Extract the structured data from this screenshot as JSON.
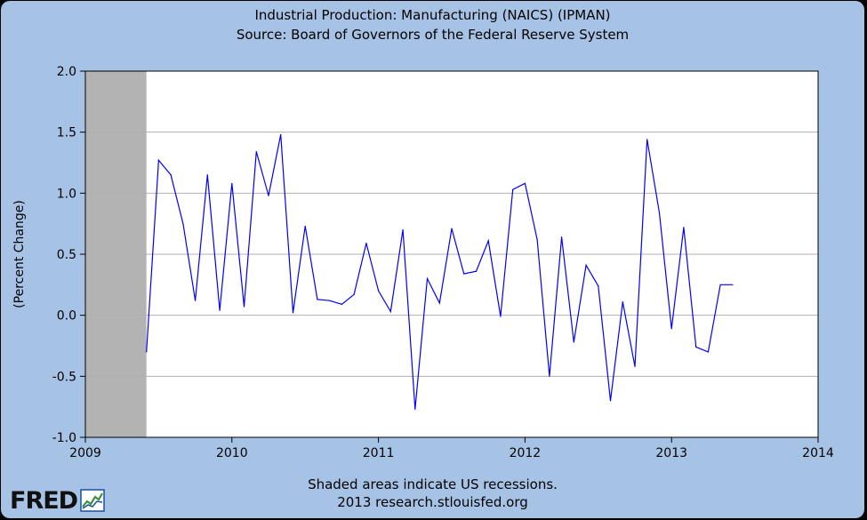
{
  "title_line1": "Industrial Production: Manufacturing (NAICS) (IPMAN)",
  "title_line2": "Source: Board of Governors of the Federal Reserve System",
  "footer_line1": "Shaded areas indicate US recessions.",
  "footer_line2": "2013 research.stlouisfed.org",
  "logo_text": "FRED",
  "colors": {
    "background": "#a6c3e6",
    "plot_background": "#ffffff",
    "line": "#0000ff",
    "recession": "#b3b3b3",
    "grid": "#b0b0b0"
  },
  "chart_data": {
    "type": "line",
    "title": "Industrial Production: Manufacturing (NAICS) (IPMAN)",
    "subtitle": "Source: Board of Governors of the Federal Reserve System",
    "xlabel": "",
    "ylabel": "(Percent Change)",
    "xlim": [
      2009,
      2014
    ],
    "ylim": [
      -1.0,
      2.0
    ],
    "xticks": [
      "2009",
      "2010",
      "2011",
      "2012",
      "2013",
      "2014"
    ],
    "yticks": [
      "2.0",
      "1.5",
      "1.0",
      "0.5",
      "0.0",
      "-0.5",
      "-1.0"
    ],
    "grid": true,
    "recession_shading": [
      {
        "start": "2009-01",
        "end": "2009-06"
      }
    ],
    "series": [
      {
        "x": [
          "2009-06",
          "2009-07",
          "2009-08",
          "2009-09",
          "2009-10",
          "2009-11",
          "2009-12",
          "2010-01",
          "2010-02",
          "2010-03",
          "2010-04",
          "2010-05",
          "2010-06",
          "2010-07",
          "2010-08",
          "2010-09",
          "2010-10",
          "2010-11",
          "2010-12",
          "2011-01",
          "2011-02",
          "2011-03",
          "2011-04",
          "2011-05",
          "2011-06",
          "2011-07",
          "2011-08",
          "2011-09",
          "2011-10",
          "2011-11",
          "2011-12",
          "2012-01",
          "2012-02",
          "2012-03",
          "2012-04",
          "2012-05",
          "2012-06",
          "2012-07",
          "2012-08",
          "2012-09",
          "2012-10",
          "2012-11",
          "2012-12",
          "2013-01",
          "2013-02",
          "2013-03",
          "2013-04",
          "2013-05",
          "2013-06"
        ],
        "values": [
          -0.3,
          1.27,
          1.15,
          0.75,
          0.12,
          1.15,
          0.04,
          1.08,
          0.07,
          1.34,
          0.98,
          1.48,
          0.02,
          0.73,
          0.13,
          0.12,
          0.09,
          0.17,
          0.59,
          0.2,
          0.03,
          0.7,
          -0.77,
          0.3,
          0.1,
          0.71,
          0.34,
          0.36,
          0.61,
          -0.01,
          1.03,
          1.08,
          0.62,
          -0.5,
          0.64,
          -0.22,
          0.41,
          0.24,
          -0.7,
          0.11,
          -0.42,
          1.44,
          0.84,
          -0.11,
          0.72,
          -0.26,
          -0.3,
          0.25,
          0.25
        ]
      }
    ]
  }
}
